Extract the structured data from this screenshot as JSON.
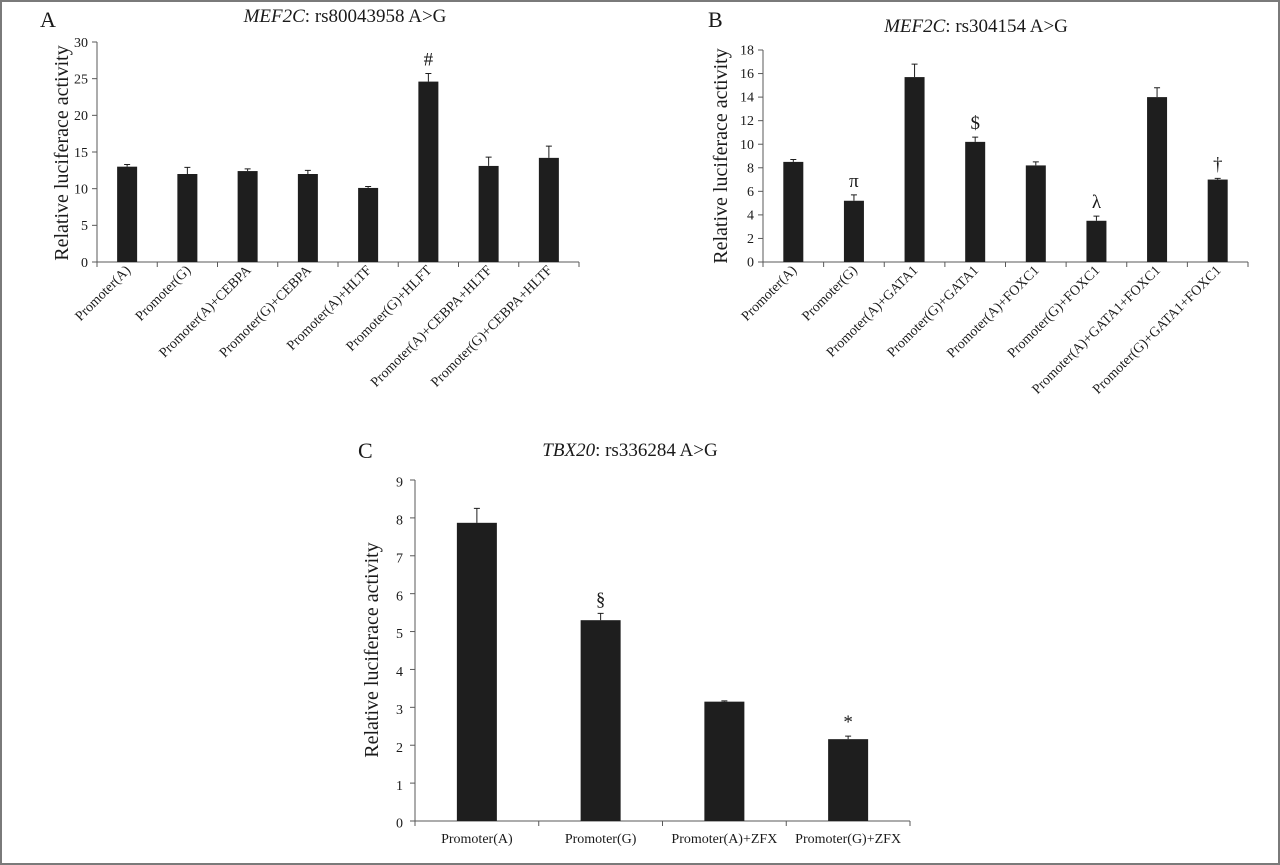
{
  "chart_data": [
    {
      "panel": "A",
      "type": "bar",
      "title_gene": "MEF2C",
      "title_rest": ": rs80043958 A>G",
      "ylabel": "Relative luciferace activity",
      "ylim": [
        0,
        30
      ],
      "yticks": [
        0,
        5,
        10,
        15,
        20,
        25,
        30
      ],
      "categories": [
        "Promoter(A)",
        "Promoter(G)",
        "Promoter(A)+CEBPA",
        "Promoter(G)+CEBPA",
        "Promoter(A)+HLTF",
        "Promoter(G)+HLFT",
        "Promoter(A)+CEBPA+HLTF",
        "Promoter(G)+CEBPA+HLTF"
      ],
      "values": [
        13.0,
        12.0,
        12.4,
        12.0,
        10.1,
        24.6,
        13.1,
        14.2
      ],
      "errors": [
        0.3,
        0.9,
        0.3,
        0.5,
        0.2,
        1.1,
        1.2,
        1.6
      ],
      "annotations": [
        "",
        "",
        "",
        "",
        "",
        "#",
        "",
        ""
      ]
    },
    {
      "panel": "B",
      "type": "bar",
      "title_gene": "MEF2C",
      "title_rest": ": rs304154 A>G",
      "ylabel": "Relative luciferace activity",
      "ylim": [
        0,
        18
      ],
      "yticks": [
        0,
        2,
        4,
        6,
        8,
        10,
        12,
        14,
        16,
        18
      ],
      "categories": [
        "Promoter(A)",
        "Promoter(G)",
        "Promoter(A)+GATA1",
        "Promoter(G)+GATA1",
        "Promoter(A)+FOXC1",
        "Promoter(G)+FOXC1",
        "Promoter(A)+GATA1+FOXC1",
        "Promoter(G)+GATA1+FOXC1"
      ],
      "values": [
        8.5,
        5.2,
        15.7,
        10.2,
        8.2,
        3.5,
        14.0,
        7.0
      ],
      "errors": [
        0.2,
        0.5,
        1.1,
        0.4,
        0.3,
        0.4,
        0.8,
        0.1
      ],
      "annotations": [
        "",
        "π",
        "",
        "$",
        "",
        "λ",
        "",
        "†"
      ]
    },
    {
      "panel": "C",
      "type": "bar",
      "title_gene": "TBX20",
      "title_rest": ": rs336284 A>G",
      "ylabel": "Relative luciferace activity",
      "ylim": [
        0,
        9
      ],
      "yticks": [
        0,
        1,
        2,
        3,
        4,
        5,
        6,
        7,
        8,
        9
      ],
      "categories": [
        "Promoter(A)",
        "Promoter(G)",
        "Promoter(A)+ZFX",
        "Promoter(G)+ZFX"
      ],
      "values": [
        7.87,
        5.3,
        3.15,
        2.16
      ],
      "errors": [
        0.38,
        0.18,
        0.02,
        0.08
      ],
      "annotations": [
        "",
        "§",
        "",
        "*"
      ]
    }
  ]
}
